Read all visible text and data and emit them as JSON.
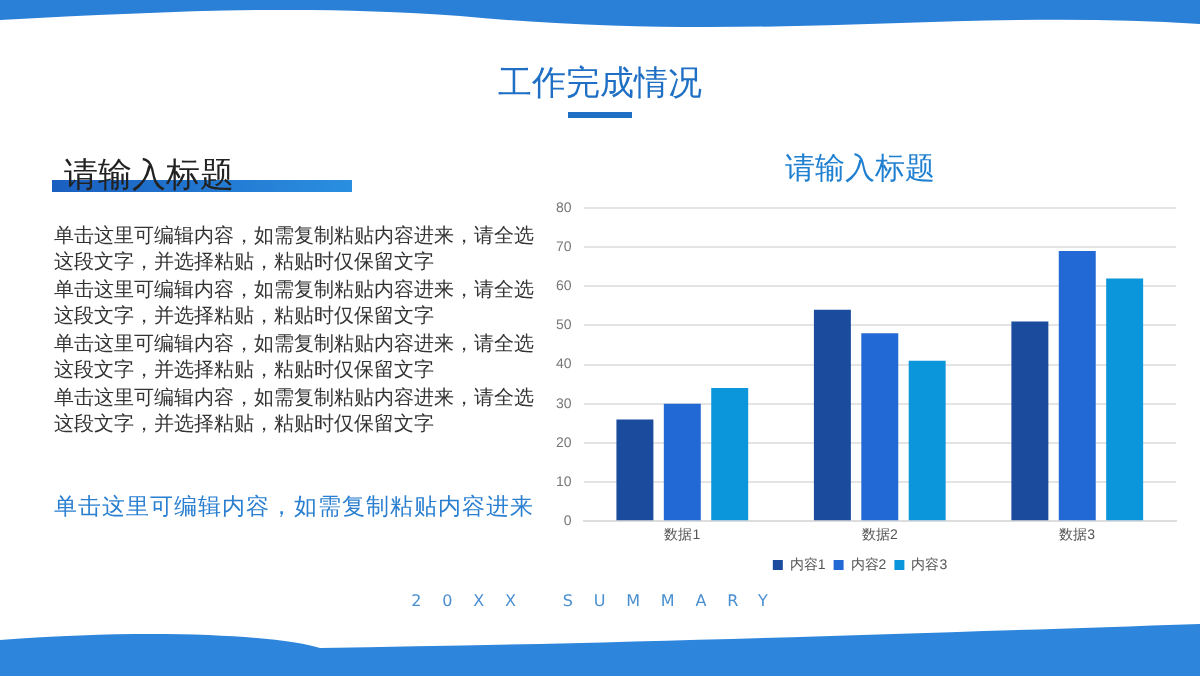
{
  "chart_data": {
    "type": "bar",
    "title": "请输入标题",
    "categories": [
      "数据1",
      "数据2",
      "数据3"
    ],
    "series": [
      {
        "name": "内容1",
        "color": "#1a4b9c",
        "values": [
          26,
          54,
          51
        ]
      },
      {
        "name": "内容2",
        "color": "#2269d6",
        "values": [
          30,
          48,
          69
        ]
      },
      {
        "name": "内容3",
        "color": "#0b96db",
        "values": [
          34,
          41,
          62
        ]
      }
    ],
    "ylim": [
      0,
      80
    ],
    "yticks": [
      0,
      10,
      20,
      30,
      40,
      50,
      60,
      70,
      80
    ],
    "grid": "y",
    "legend": "bottom",
    "annotations": [
      "工作完成情况",
      "请输入标题",
      "单击这里可编辑内容，如需复制粘贴内容进来，请全选这段文字，并选择粘贴，粘贴时仅保留文字",
      "单击这里可编辑内容，如需复制粘贴内容进来，请全选这段文字，并选择粘贴，粘贴时仅保留文字",
      "单击这里可编辑内容，如需复制粘贴内容进来，请全选这段文字，并选择粘贴，粘贴时仅保留文字",
      "单击这里可编辑内容，如需复制粘贴内容进来，请全选这段文字，并选择粘贴，粘贴时仅保留文字",
      "单击这里可编辑内容，如需复制粘贴内容进来",
      "20XX SUMMARY"
    ]
  }
}
